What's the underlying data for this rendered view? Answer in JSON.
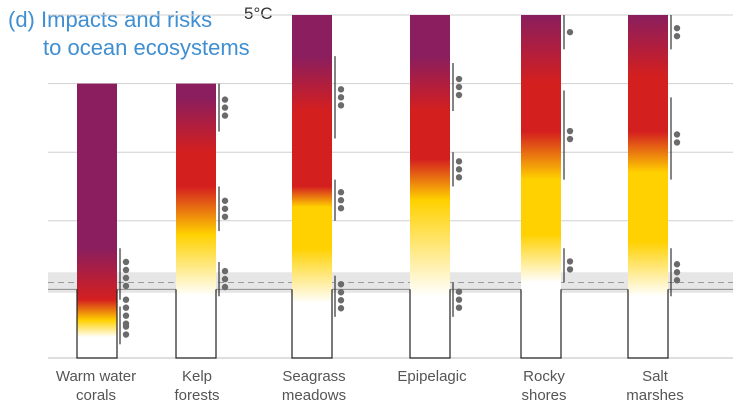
{
  "title": {
    "line1": "(d) Impacts and risks",
    "line2": "to ocean ecosystems"
  },
  "chart_data": {
    "type": "bar",
    "title": "(d) Impacts and risks to ocean ecosystems",
    "ymax_label": "5°C",
    "ylim": [
      0,
      5
    ],
    "grid": true,
    "colors": {
      "undetectable": "#ffffff",
      "moderate": "#ffd100",
      "high": "#d41f1f",
      "very_high": "#8a1e5e"
    },
    "categories": [
      {
        "label_lines": [
          "Warm water",
          "corals"
        ]
      },
      {
        "label_lines": [
          "Kelp",
          "forests"
        ]
      },
      {
        "label_lines": [
          "Seagrass",
          "meadows"
        ]
      },
      {
        "label_lines": [
          "Epipelagic"
        ]
      },
      {
        "label_lines": [
          "Rocky",
          "shores"
        ]
      },
      {
        "label_lines": [
          "Salt",
          "marshes"
        ]
      }
    ],
    "bars": [
      {
        "top": 4.0,
        "stops": [
          [
            0.0,
            "undetectable"
          ],
          [
            0.3,
            "undetectable"
          ],
          [
            0.55,
            "moderate"
          ],
          [
            0.85,
            "high"
          ],
          [
            1.6,
            "very_high"
          ],
          [
            4.0,
            "very_high"
          ]
        ],
        "confidence": [
          {
            "y0": 0.2,
            "y1": 0.6,
            "dots": 2
          },
          {
            "y0": 0.6,
            "y1": 0.75,
            "dots": 4
          },
          {
            "y0": 0.85,
            "y1": 1.6,
            "dots": 4
          }
        ]
      },
      {
        "top": 4.0,
        "stops": [
          [
            0.0,
            "undetectable"
          ],
          [
            0.9,
            "undetectable"
          ],
          [
            1.8,
            "moderate"
          ],
          [
            2.5,
            "high"
          ],
          [
            3.0,
            "high"
          ],
          [
            3.8,
            "very_high"
          ],
          [
            4.0,
            "very_high"
          ]
        ],
        "confidence": [
          {
            "y0": 0.9,
            "y1": 1.4,
            "dots": 3
          },
          {
            "y0": 1.85,
            "y1": 2.5,
            "dots": 3
          },
          {
            "y0": 3.3,
            "y1": 4.0,
            "dots": 3
          }
        ]
      },
      {
        "top": 5.0,
        "stops": [
          [
            0.0,
            "undetectable"
          ],
          [
            0.8,
            "undetectable"
          ],
          [
            1.6,
            "moderate"
          ],
          [
            2.2,
            "moderate"
          ],
          [
            2.5,
            "high"
          ],
          [
            3.6,
            "high"
          ],
          [
            4.4,
            "very_high"
          ],
          [
            5.0,
            "very_high"
          ]
        ],
        "confidence": [
          {
            "y0": 0.6,
            "y1": 1.2,
            "dots": 4
          },
          {
            "y0": 2.0,
            "y1": 2.6,
            "dots": 3
          },
          {
            "y0": 3.2,
            "y1": 4.4,
            "dots": 3
          }
        ]
      },
      {
        "top": 5.0,
        "stops": [
          [
            0.0,
            "undetectable"
          ],
          [
            0.9,
            "undetectable"
          ],
          [
            2.3,
            "moderate"
          ],
          [
            2.9,
            "high"
          ],
          [
            3.6,
            "high"
          ],
          [
            4.4,
            "very_high"
          ],
          [
            5.0,
            "very_high"
          ]
        ],
        "confidence": [
          {
            "y0": 0.6,
            "y1": 1.1,
            "dots": 3
          },
          {
            "y0": 2.5,
            "y1": 3.0,
            "dots": 3
          },
          {
            "y0": 3.6,
            "y1": 4.3,
            "dots": 3
          }
        ]
      },
      {
        "top": 5.0,
        "stops": [
          [
            0.0,
            "undetectable"
          ],
          [
            1.1,
            "undetectable"
          ],
          [
            1.8,
            "moderate"
          ],
          [
            2.6,
            "moderate"
          ],
          [
            3.3,
            "high"
          ],
          [
            4.0,
            "high"
          ],
          [
            5.0,
            "very_high"
          ]
        ],
        "confidence": [
          {
            "y0": 1.1,
            "y1": 1.6,
            "dots": 2
          },
          {
            "y0": 2.6,
            "y1": 3.9,
            "dots": 2
          },
          {
            "y0": 4.5,
            "y1": 5.0,
            "dots": 1
          }
        ]
      },
      {
        "top": 5.0,
        "stops": [
          [
            0.0,
            "undetectable"
          ],
          [
            0.9,
            "undetectable"
          ],
          [
            1.7,
            "moderate"
          ],
          [
            2.7,
            "moderate"
          ],
          [
            3.3,
            "high"
          ],
          [
            4.1,
            "high"
          ],
          [
            5.0,
            "very_high"
          ]
        ],
        "confidence": [
          {
            "y0": 0.9,
            "y1": 1.6,
            "dots": 3
          },
          {
            "y0": 2.6,
            "y1": 3.8,
            "dots": 2
          },
          {
            "y0": 4.5,
            "y1": 5.0,
            "dots": 2
          }
        ]
      }
    ]
  }
}
